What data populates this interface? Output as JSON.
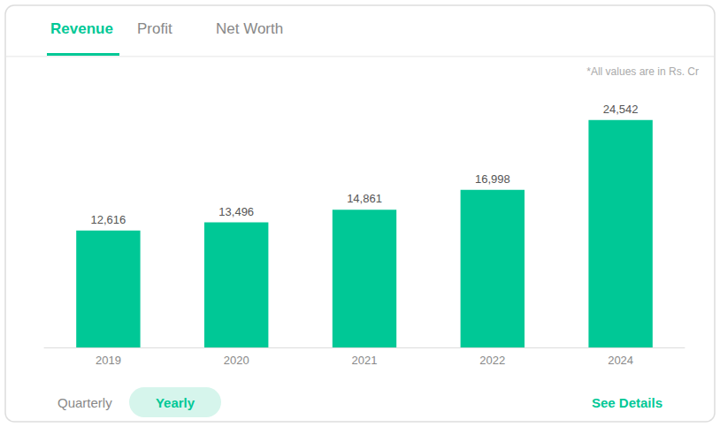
{
  "chart_data": {
    "type": "bar",
    "categories": [
      "2019",
      "2020",
      "2021",
      "2022",
      "2024"
    ],
    "values": [
      12616,
      13496,
      14861,
      16998,
      24542
    ],
    "value_labels": [
      "12,616",
      "13,496",
      "14,861",
      "16,998",
      "24,542"
    ],
    "data_labels": true,
    "color": "#00C896",
    "ylim": [
      0,
      27000
    ],
    "grid": false,
    "tick_labels": "x",
    "annotations": [
      {
        "text": "*All values are in Rs. Cr",
        "color": "#aaaaaa"
      },
      {
        "text": "Revenue",
        "color": "#00C896"
      },
      {
        "text": "Profit",
        "color": "#888888"
      },
      {
        "text": "Net Worth",
        "color": "#888888"
      },
      {
        "text": "Quarterly",
        "color": "#888888"
      },
      {
        "text": "Yearly",
        "color": "#00C896"
      },
      {
        "text": "See Details",
        "color": "#00C896"
      }
    ]
  }
}
